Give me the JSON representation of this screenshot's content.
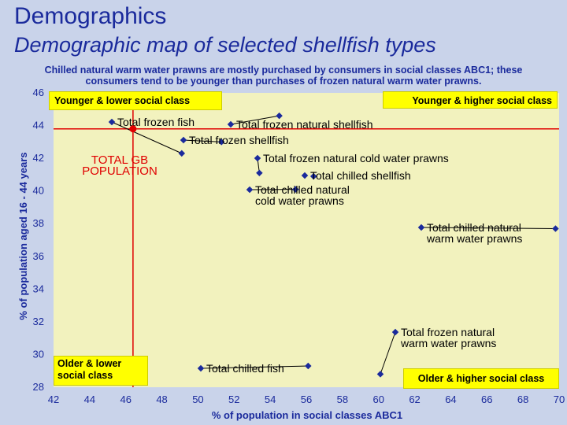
{
  "header": {
    "title": "Demographics",
    "subtitle": "Demographic map of selected shellfish types",
    "description_line1": "Chilled natural warm water prawns are mostly purchased by consumers in social classes ABC1; these",
    "description_line2": "consumers tend to be younger than purchases of frozen natural warm water prawns."
  },
  "quadrants": {
    "top_left": "Younger & lower social class",
    "top_right": "Younger & higher social class",
    "bottom_left_line1": "Older & lower",
    "bottom_left_line2": "social class",
    "bottom_right": "Older & higher social class"
  },
  "colors": {
    "background": "#c9d3ea",
    "plot_area": "#f2f2be",
    "quadrant_box": "#ffff00",
    "reference_line": "#e00000",
    "text": "#1a2a9c",
    "marker": "#1a2a9c"
  },
  "chart_data": {
    "type": "scatter",
    "xlabel": "% of population in social classes ABC1",
    "ylabel": "% of population aged 16 - 44 years",
    "xlim": [
      42,
      70
    ],
    "ylim": [
      28,
      46
    ],
    "xticks": [
      42,
      44,
      46,
      48,
      50,
      52,
      54,
      56,
      58,
      60,
      62,
      64,
      66,
      68,
      70
    ],
    "yticks": [
      28,
      30,
      32,
      34,
      36,
      38,
      40,
      42,
      44,
      46
    ],
    "grid": false,
    "reference": {
      "name_line1": "TOTAL GB",
      "name_line2": "POPULATION",
      "x": 46.4,
      "y": 43.8
    },
    "points": [
      {
        "label_lines": [
          "Total frozen fish"
        ],
        "x": 49.1,
        "y": 42.3
      },
      {
        "label_lines": [
          "Total frozen natural shellfish"
        ],
        "x": 54.5,
        "y": 44.6
      },
      {
        "label_lines": [
          "Total frozen shellfish"
        ],
        "x": 51.3,
        "y": 43.0
      },
      {
        "label_lines": [
          "Total frozen natural cold water prawns"
        ],
        "x": 53.4,
        "y": 41.1
      },
      {
        "label_lines": [
          "Total chilled shellfish"
        ],
        "x": 56.4,
        "y": 40.9
      },
      {
        "label_lines": [
          "Total chilled natural",
          "cold water prawns"
        ],
        "x": 55.4,
        "y": 40.1
      },
      {
        "label_lines": [
          "Total chilled natural",
          "warm water prawns"
        ],
        "x": 69.8,
        "y": 37.7
      },
      {
        "label_lines": [
          "Total frozen natural",
          "warm water prawns"
        ],
        "x": 60.1,
        "y": 28.8
      },
      {
        "label_lines": [
          "Total chilled fish"
        ],
        "x": 56.1,
        "y": 29.3
      }
    ]
  }
}
